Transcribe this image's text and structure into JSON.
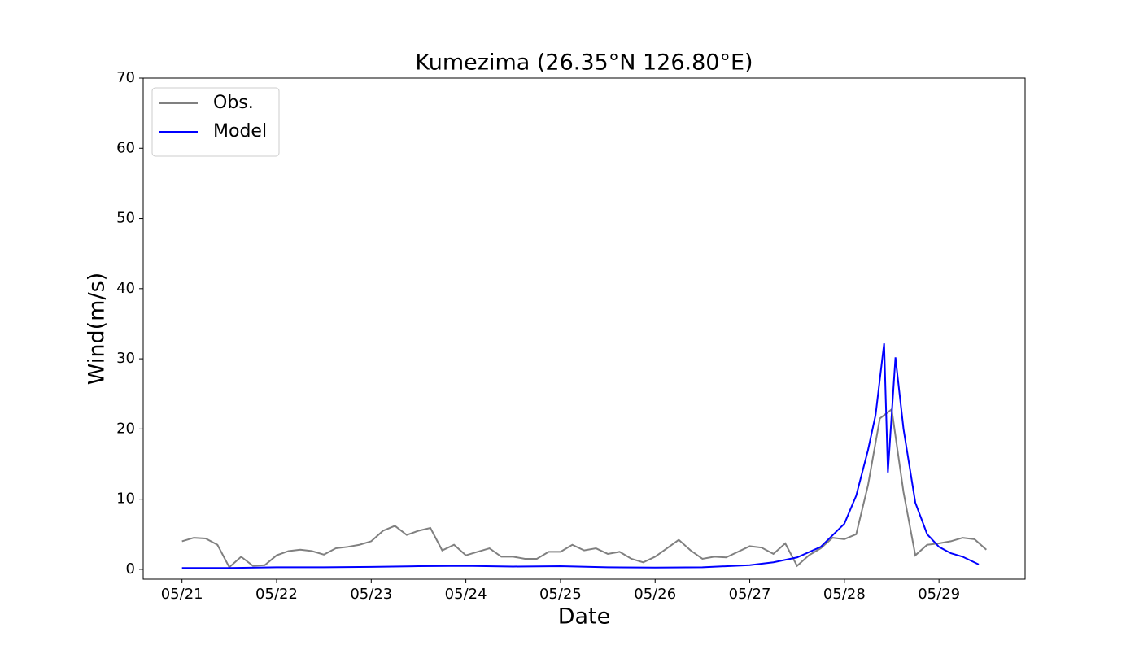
{
  "chart_data": {
    "type": "line",
    "title": "Kumezima (26.35°N 126.80°E)",
    "x_label": "Date",
    "y_label": "Wind(m/s)",
    "xlim": [
      20.59,
      29.91
    ],
    "ylim": [
      -1.4,
      70
    ],
    "xticks": [
      {
        "value": 21,
        "label": "05/21"
      },
      {
        "value": 22,
        "label": "05/22"
      },
      {
        "value": 23,
        "label": "05/23"
      },
      {
        "value": 24,
        "label": "05/24"
      },
      {
        "value": 25,
        "label": "05/25"
      },
      {
        "value": 26,
        "label": "05/26"
      },
      {
        "value": 27,
        "label": "05/27"
      },
      {
        "value": 28,
        "label": "05/28"
      },
      {
        "value": 29,
        "label": "05/29"
      }
    ],
    "yticks": [
      0,
      10,
      20,
      30,
      40,
      50,
      60,
      70
    ],
    "legend": "upper left",
    "series": [
      {
        "name": "Obs.",
        "color": "#808080",
        "x": [
          21,
          21.125,
          21.25,
          21.375,
          21.5,
          21.625,
          21.75,
          21.875,
          22,
          22.125,
          22.25,
          22.375,
          22.5,
          22.625,
          22.75,
          22.875,
          23,
          23.125,
          23.25,
          23.375,
          23.5,
          23.625,
          23.75,
          23.875,
          24,
          24.125,
          24.25,
          24.375,
          24.5,
          24.625,
          24.75,
          24.875,
          25,
          25.125,
          25.25,
          25.375,
          25.5,
          25.625,
          25.75,
          25.875,
          26,
          26.125,
          26.25,
          26.375,
          26.5,
          26.625,
          26.75,
          26.875,
          27,
          27.125,
          27.25,
          27.375,
          27.5,
          27.625,
          27.75,
          27.875,
          28,
          28.125,
          28.25,
          28.375,
          28.5,
          28.625,
          28.75,
          28.875,
          29,
          29.125,
          29.25,
          29.375,
          29.5
        ],
        "values": [
          4.0,
          4.5,
          4.4,
          3.5,
          0.3,
          1.8,
          0.5,
          0.6,
          2.0,
          2.6,
          2.8,
          2.6,
          2.1,
          3.0,
          3.2,
          3.5,
          4.0,
          5.5,
          6.2,
          4.9,
          5.5,
          5.9,
          2.7,
          3.5,
          2.0,
          2.5,
          3.0,
          1.8,
          1.8,
          1.5,
          1.5,
          2.5,
          2.5,
          3.5,
          2.7,
          3.0,
          2.2,
          2.5,
          1.5,
          1.0,
          1.8,
          3.0,
          4.2,
          2.7,
          1.5,
          1.8,
          1.7,
          2.5,
          3.3,
          3.1,
          2.2,
          3.7,
          0.5,
          2.0,
          3.0,
          4.5,
          4.3,
          5.0,
          12.0,
          21.5,
          22.8,
          11.0,
          2.0,
          3.5,
          3.7,
          4.0,
          4.5,
          4.3,
          2.8
        ]
      },
      {
        "name": "Model",
        "color": "#0000ff",
        "x": [
          21,
          21.5,
          22,
          22.5,
          23,
          23.5,
          24,
          24.5,
          25,
          25.5,
          26,
          26.5,
          27,
          27.25,
          27.5,
          27.75,
          28,
          28.125,
          28.25,
          28.33,
          28.42,
          28.46,
          28.54,
          28.625,
          28.75,
          28.875,
          29,
          29.125,
          29.25,
          29.42
        ],
        "values": [
          0.2,
          0.2,
          0.3,
          0.3,
          0.35,
          0.45,
          0.5,
          0.4,
          0.45,
          0.3,
          0.25,
          0.3,
          0.6,
          1.0,
          1.7,
          3.2,
          6.5,
          10.5,
          17,
          22,
          32.2,
          13.8,
          30.2,
          20,
          9.5,
          5,
          3.2,
          2.3,
          1.8,
          0.7
        ]
      }
    ]
  }
}
